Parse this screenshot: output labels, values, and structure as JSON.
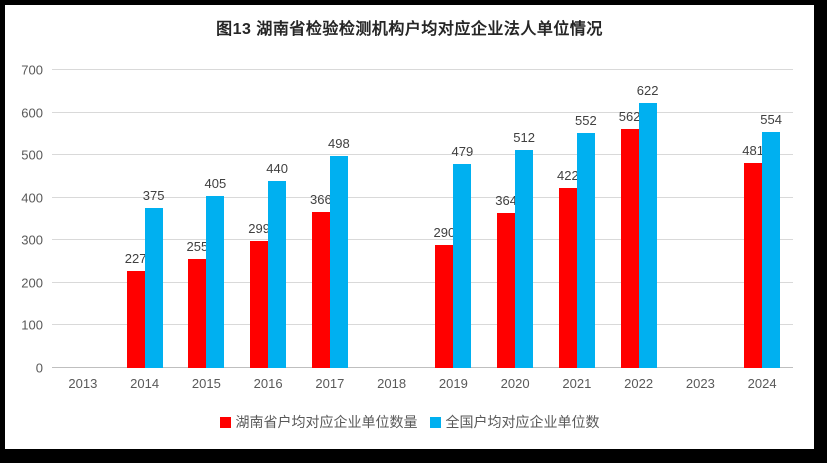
{
  "frame": {
    "border_color": "#000000",
    "background": "#FFFFFF"
  },
  "chart_data": {
    "type": "bar",
    "title": "图13 湖南省检验检测机构户均对应企业法人单位情况",
    "xlabel": "",
    "ylabel": "",
    "ylim": [
      0,
      700
    ],
    "yticks": [
      0,
      100,
      200,
      300,
      400,
      500,
      600,
      700
    ],
    "grid": true,
    "legend_position": "bottom",
    "gridline_color": "#D9D9D9",
    "axis_line_color": "#BFBFBF",
    "tick_label_color": "#595959",
    "data_label_color": "#404040",
    "categories": [
      "2013",
      "2014",
      "2015",
      "2016",
      "2017",
      "2018",
      "2019",
      "2020",
      "2021",
      "2022",
      "2023",
      "2024"
    ],
    "series": [
      {
        "name": "湖南省户均对应企业单位数量",
        "key": "hunan",
        "color": "#FF0000",
        "values": [
          null,
          227,
          255,
          299,
          366,
          null,
          290,
          364,
          422,
          562,
          null,
          481
        ]
      },
      {
        "name": "全国户均对应企业单位数",
        "key": "national",
        "color": "#00B0F0",
        "values": [
          null,
          375,
          405,
          440,
          498,
          null,
          479,
          512,
          552,
          622,
          null,
          554
        ]
      }
    ]
  }
}
